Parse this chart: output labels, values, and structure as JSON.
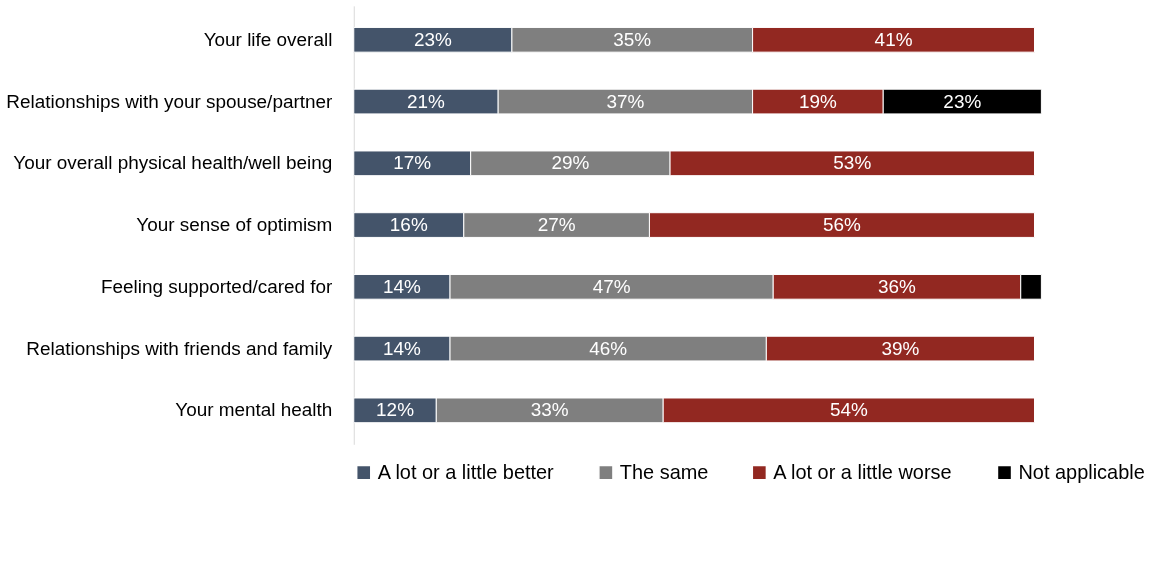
{
  "chart_data": {
    "type": "bar",
    "orientation": "horizontal",
    "stacked": true,
    "categories": [
      "Your life overall",
      "Relationships with your spouse/partner",
      "Your overall physical health/well being",
      "Your sense of optimism",
      "Feeling supported/cared for",
      "Relationships with friends and family",
      "Your mental health"
    ],
    "series": [
      {
        "name": "A lot or a little better",
        "color": "#44546a",
        "values": [
          23,
          21,
          17,
          16,
          14,
          14,
          12
        ],
        "value_labels": [
          "23%",
          "21%",
          "17%",
          "16%",
          "14%",
          "14%",
          "12%"
        ]
      },
      {
        "name": "The same",
        "color": "#7f7f7f",
        "values": [
          35,
          37,
          29,
          27,
          47,
          46,
          33
        ],
        "value_labels": [
          "35%",
          "37%",
          "29%",
          "27%",
          "47%",
          "46%",
          "33%"
        ]
      },
      {
        "name": "A lot or a little worse",
        "color": "#922821",
        "values": [
          41,
          19,
          53,
          56,
          36,
          39,
          54
        ],
        "value_labels": [
          "41%",
          "19%",
          "53%",
          "56%",
          "36%",
          "39%",
          "54%"
        ]
      },
      {
        "name": "Not applicable",
        "color": "#000000",
        "values": [
          null,
          23,
          null,
          null,
          3,
          null,
          null
        ],
        "value_labels": [
          null,
          "23%",
          null,
          null,
          null,
          null,
          null
        ]
      }
    ],
    "legend": "bottom"
  }
}
